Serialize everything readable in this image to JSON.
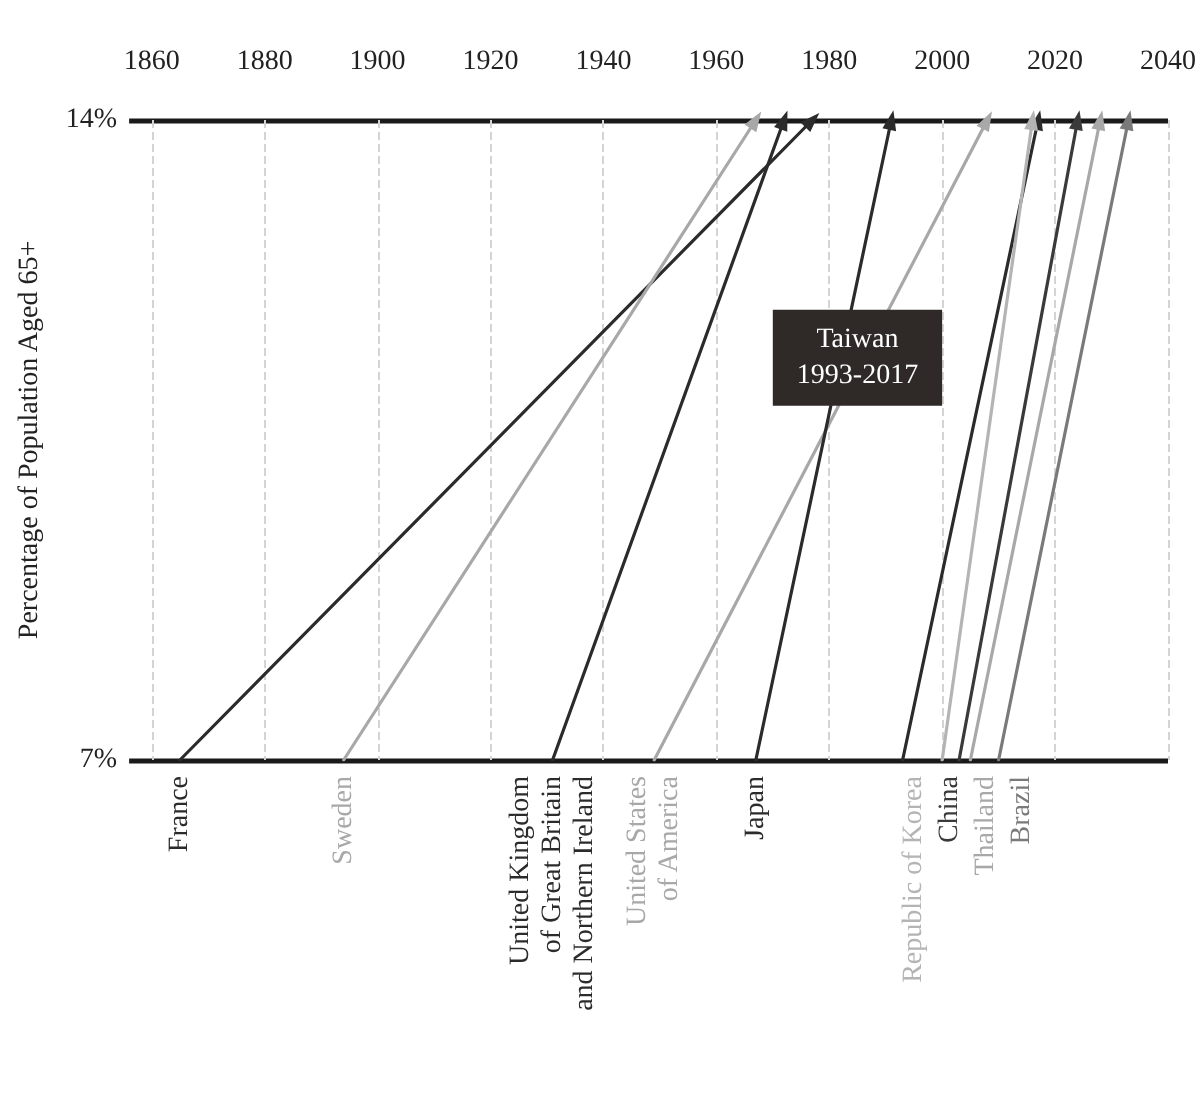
{
  "chart_data": {
    "type": "line",
    "ylabel": "Percentage of Population Aged 65+",
    "xlim": [
      1856,
      2040
    ],
    "xticks": [
      1860,
      1880,
      1900,
      1920,
      1940,
      1960,
      1980,
      2000,
      2020,
      2040
    ],
    "ylim": [
      7,
      14
    ],
    "yticks": [
      {
        "value": 7,
        "label": "7%"
      },
      {
        "value": 14,
        "label": "14%"
      }
    ],
    "grid": true,
    "marker": "triangle",
    "legend": false,
    "series": [
      {
        "name": "France",
        "color": "#2b2b2b",
        "x": [
          1865,
          1977
        ],
        "values": [
          7,
          14
        ]
      },
      {
        "name": "Sweden",
        "color": "#a8a8a8",
        "x": [
          1894,
          1967
        ],
        "values": [
          7,
          14
        ]
      },
      {
        "name": "United Kingdom\nof Great Britain\nand Northern Ireland",
        "color": "#2b2b2b",
        "x": [
          1931,
          1972
        ],
        "values": [
          7,
          14
        ]
      },
      {
        "name": "United States\nof America",
        "color": "#a8a8a8",
        "x": [
          1949,
          2008
        ],
        "values": [
          7,
          14
        ]
      },
      {
        "name": "Japan",
        "color": "#2b2b2b",
        "x": [
          1967,
          1991
        ],
        "values": [
          7,
          14
        ]
      },
      {
        "color": "#2b2b2b",
        "x": [
          1993,
          2017
        ],
        "values": [
          7,
          14
        ]
      },
      {
        "name": "Republic of Korea",
        "color": "#b4b4b4",
        "x": [
          2000,
          2016
        ],
        "values": [
          7,
          14
        ]
      },
      {
        "name": "China",
        "color": "#3a3a3a",
        "x": [
          2003,
          2024
        ],
        "values": [
          7,
          14
        ]
      },
      {
        "name": "Thailand",
        "color": "#a8a8a8",
        "x": [
          2005,
          2028
        ],
        "values": [
          7,
          14
        ]
      },
      {
        "name": "Brazil",
        "color": "#7a7a7a",
        "x": [
          2010,
          2033
        ],
        "values": [
          7,
          14
        ]
      }
    ],
    "annotations": [
      {
        "text": "Taiwan\n1993-2017",
        "x": 1985,
        "y": 11.4
      }
    ]
  }
}
